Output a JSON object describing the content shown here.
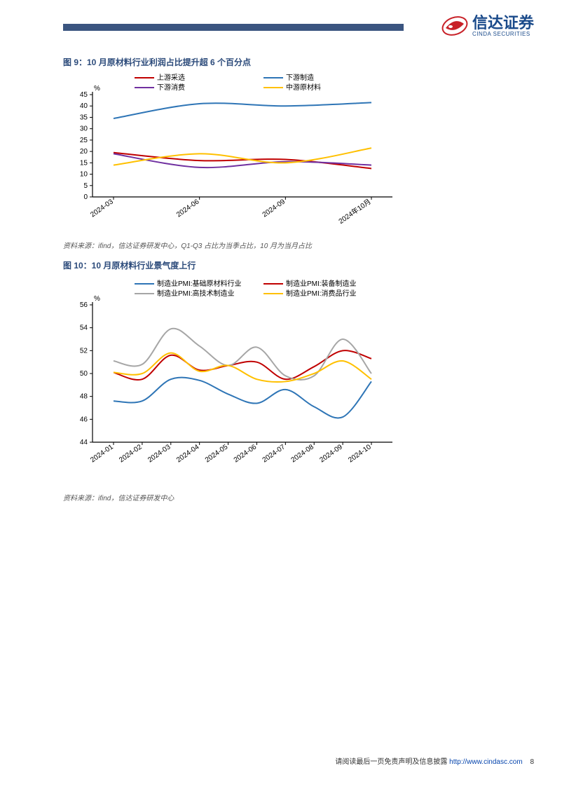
{
  "header": {
    "company_name_cn": "信达证券",
    "company_name_en": "CINDA SECURITIES"
  },
  "chart9": {
    "type": "line",
    "title": "图 9：10 月原材料行业利润占比提升超 6 个百分点",
    "ylabel": "%",
    "ylim": [
      0,
      45
    ],
    "ytick_step": 5,
    "xlabels": [
      "2024-03",
      "2024-06",
      "2024-09",
      "2024年10月"
    ],
    "series": [
      {
        "name": "上游采选",
        "color": "#c00000",
        "values": [
          19.5,
          16,
          16.5,
          12.5
        ]
      },
      {
        "name": "下游制造",
        "color": "#2e75b6",
        "values": [
          34.5,
          41,
          40,
          41.5
        ]
      },
      {
        "name": "下游消费",
        "color": "#7030a0",
        "values": [
          19,
          13,
          15.5,
          14
        ]
      },
      {
        "name": "中游原材料",
        "color": "#ffc000",
        "values": [
          14,
          19,
          15,
          21.5
        ]
      }
    ],
    "background_color": "#ffffff",
    "axis_color": "#000000",
    "title_fontsize": 12,
    "label_fontsize": 10,
    "line_width": 2,
    "source": "资料来源：ifind，信达证券研发中心，Q1-Q3 占比为当季占比，10 月为当月占比"
  },
  "chart10": {
    "type": "line",
    "title": "图 10：10 月原材料行业景气度上行",
    "ylabel": "%",
    "ylim": [
      44,
      56
    ],
    "ytick_step": 2,
    "xlabels": [
      "2024-01",
      "2024-02",
      "2024-03",
      "2024-04",
      "2024-05",
      "2024-06",
      "2024-07",
      "2024-08",
      "2024-09",
      "2024-10"
    ],
    "series": [
      {
        "name": "制造业PMI:基础原材料行业",
        "color": "#2e75b6",
        "values": [
          47.6,
          47.6,
          49.5,
          49.4,
          48.2,
          47.4,
          48.6,
          47.1,
          46.2,
          49.3
        ]
      },
      {
        "name": "制造业PMI:装备制造业",
        "color": "#c00000",
        "values": [
          50.1,
          49.5,
          51.6,
          50.3,
          50.7,
          51.0,
          49.5,
          50.6,
          52.0,
          51.3
        ]
      },
      {
        "name": "制造业PMI:高技术制造业",
        "color": "#a6a6a6",
        "values": [
          51.1,
          50.8,
          53.9,
          52.4,
          50.7,
          52.3,
          49.8,
          49.8,
          53.0,
          50.0
        ]
      },
      {
        "name": "制造业PMI:消费品行业",
        "color": "#ffc000",
        "values": [
          50.1,
          50.0,
          51.8,
          50.2,
          50.7,
          49.5,
          49.3,
          50.0,
          51.1,
          49.5
        ]
      }
    ],
    "background_color": "#ffffff",
    "axis_color": "#000000",
    "title_fontsize": 12,
    "label_fontsize": 10,
    "line_width": 2,
    "source": "资料来源：ifind，信达证券研发中心"
  },
  "footer": {
    "text": "请阅读最后一页免责声明及信息披露",
    "url_label": "http://www.cindasc.com",
    "page": "8"
  }
}
